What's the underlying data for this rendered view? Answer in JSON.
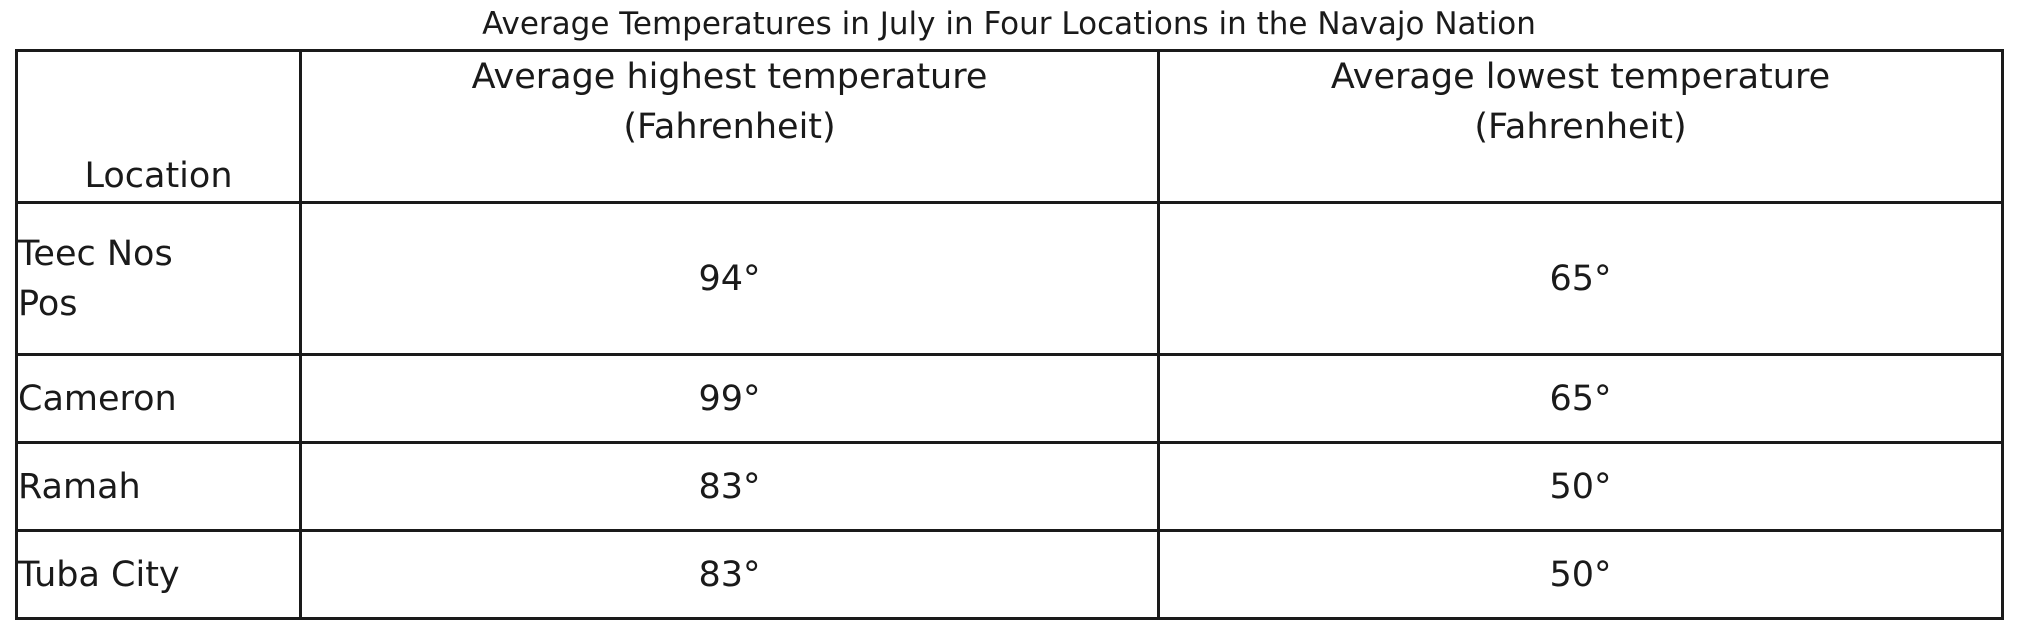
{
  "title": "Average Temperatures in July in Four Locations in the Navajo Nation",
  "table": {
    "headers": {
      "location": "Location",
      "high_line1": "Average highest temperature",
      "high_line2": "(Fahrenheit)",
      "low_line1": "Average lowest temperature",
      "low_line2": "(Fahrenheit)"
    },
    "rows": [
      {
        "location_line1": "Teec Nos",
        "location_line2": "Pos",
        "high": "94°",
        "low": "65°"
      },
      {
        "location": "Cameron",
        "high": "99°",
        "low": "65°"
      },
      {
        "location": "Ramah",
        "high": "83°",
        "low": "50°"
      },
      {
        "location": "Tuba City",
        "high": "83°",
        "low": "50°"
      }
    ]
  }
}
